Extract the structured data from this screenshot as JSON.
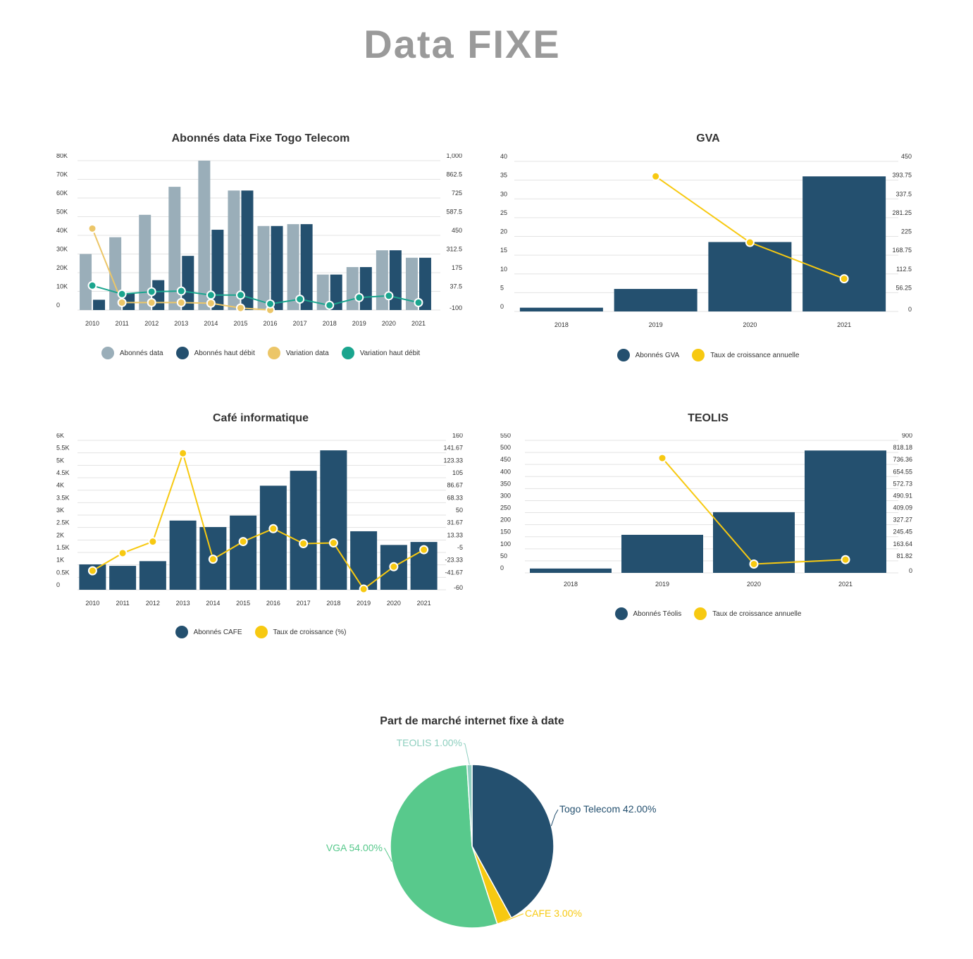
{
  "page": {
    "title": "Data FIXE"
  },
  "colors": {
    "navy": "#24506f",
    "grey_blue": "#9aaeb9",
    "sand": "#ecc668",
    "teal": "#1aa58e",
    "yellow": "#f7c911",
    "green": "#58c98c",
    "light_teal": "#8ecfbf",
    "grid": "#e3e3e3"
  },
  "chart_data": [
    {
      "id": "togo",
      "type": "bar",
      "title": "Abonnés data Fixe Togo Telecom",
      "categories": [
        "2010",
        "2011",
        "2012",
        "2013",
        "2014",
        "2015",
        "2016",
        "2017",
        "2018",
        "2019",
        "2020",
        "2021"
      ],
      "y_ticks_left": [
        "80K",
        "70K",
        "60K",
        "50K",
        "40K",
        "30K",
        "20K",
        "10K",
        "0"
      ],
      "y_ticks_right": [
        "1,000",
        "862.5",
        "725",
        "587.5",
        "450",
        "312.5",
        "175",
        "37.5",
        "-100"
      ],
      "ylim_left": [
        0,
        80000
      ],
      "ylim_right": [
        -100,
        1000
      ],
      "grid": true,
      "legend_position": "bottom",
      "series": [
        {
          "name": "Abonnés data",
          "kind": "bar",
          "axis": "left",
          "color": "#9aaeb9",
          "values": [
            30000,
            39000,
            51000,
            66000,
            80000,
            64000,
            45000,
            46000,
            19000,
            23000,
            32000,
            28000
          ]
        },
        {
          "name": "Abonnés haut débit",
          "kind": "bar",
          "axis": "left",
          "color": "#24506f",
          "values": [
            5500,
            9000,
            16000,
            29000,
            43000,
            64000,
            45000,
            46000,
            19000,
            23000,
            32000,
            28000
          ]
        },
        {
          "name": "Variation data",
          "kind": "line",
          "axis": "right",
          "color": "#ecc668",
          "values": [
            500,
            -45,
            -45,
            -45,
            -50,
            -85,
            -100,
            null,
            null,
            null,
            null,
            null
          ]
        },
        {
          "name": "Variation haut débit",
          "kind": "line",
          "axis": "right",
          "color": "#1aa58e",
          "values": [
            80,
            18,
            35,
            40,
            10,
            10,
            -55,
            -20,
            -65,
            -8,
            5,
            -45
          ]
        }
      ]
    },
    {
      "id": "gva",
      "type": "bar",
      "title": "GVA",
      "categories": [
        "2018",
        "2019",
        "2020",
        "2021"
      ],
      "y_ticks_left": [
        "40",
        "35",
        "30",
        "25",
        "20",
        "15",
        "10",
        "5",
        "0"
      ],
      "y_ticks_right": [
        "450",
        "393.75",
        "337.5",
        "281.25",
        "225",
        "168.75",
        "112.5",
        "56.25",
        "0"
      ],
      "ylim_left": [
        0,
        40
      ],
      "ylim_right": [
        0,
        450
      ],
      "grid": true,
      "legend_position": "bottom",
      "series": [
        {
          "name": "Abonnés GVA",
          "kind": "bar",
          "axis": "left",
          "color": "#24506f",
          "values": [
            1,
            6,
            18.5,
            36
          ]
        },
        {
          "name": "Taux de croissance annuelle",
          "kind": "line",
          "axis": "right",
          "color": "#f7c911",
          "values": [
            null,
            405,
            207,
            98
          ]
        }
      ]
    },
    {
      "id": "cafe",
      "type": "bar",
      "title": "Café informatique",
      "categories": [
        "2010",
        "2011",
        "2012",
        "2013",
        "2014",
        "2015",
        "2016",
        "2017",
        "2018",
        "2019",
        "2020",
        "2021"
      ],
      "y_ticks_left": [
        "6K",
        "5.5K",
        "5K",
        "4.5K",
        "4K",
        "3.5K",
        "3K",
        "2.5K",
        "2K",
        "1.5K",
        "1K",
        "0.5K",
        "0"
      ],
      "y_ticks_right": [
        "160",
        "141.67",
        "123.33",
        "105",
        "86.67",
        "68.33",
        "50",
        "31.67",
        "13.33",
        "-5",
        "-23.33",
        "-41.67",
        "-60"
      ],
      "ylim_left": [
        0,
        6000
      ],
      "ylim_right": [
        -60,
        160
      ],
      "grid": true,
      "legend_position": "bottom",
      "series": [
        {
          "name": "Abonnés CAFE",
          "kind": "bar",
          "axis": "left",
          "color": "#24506f",
          "values": [
            1020,
            960,
            1150,
            2780,
            2520,
            2980,
            4180,
            4780,
            5600,
            2350,
            1800,
            1920
          ]
        },
        {
          "name": "Taux de croissance (%)",
          "kind": "line",
          "axis": "right",
          "color": "#f7c911",
          "values": [
            -32,
            -6,
            11,
            141,
            -15,
            11,
            30,
            8,
            9,
            -59,
            -26,
            -1
          ]
        }
      ]
    },
    {
      "id": "teolis",
      "type": "bar",
      "title": "TEOLIS",
      "categories": [
        "2018",
        "2019",
        "2020",
        "2021"
      ],
      "y_ticks_left": [
        "550",
        "500",
        "450",
        "400",
        "350",
        "300",
        "250",
        "200",
        "150",
        "100",
        "50",
        "0"
      ],
      "y_ticks_right": [
        "900",
        "818.18",
        "736.36",
        "654.55",
        "572.73",
        "490.91",
        "409.09",
        "327.27",
        "245.45",
        "163.64",
        "81.82",
        "0"
      ],
      "ylim_left": [
        0,
        550
      ],
      "ylim_right": [
        0,
        900
      ],
      "grid": true,
      "legend_position": "bottom",
      "series": [
        {
          "name": "Abonnés Téolis",
          "kind": "bar",
          "axis": "left",
          "color": "#24506f",
          "values": [
            18,
            158,
            252,
            508
          ]
        },
        {
          "name": "Taux de croissance annuelle",
          "kind": "line",
          "axis": "right",
          "color": "#f7c911",
          "values": [
            null,
            780,
            60,
            90
          ]
        }
      ]
    },
    {
      "id": "pie",
      "type": "pie",
      "title": "Part de marché internet fixe à date",
      "slices": [
        {
          "label": "Togo Telecom 42.00%",
          "value": 42,
          "color": "#24506f"
        },
        {
          "label": "CAFE 3.00%",
          "value": 3,
          "color": "#f7c911"
        },
        {
          "label": "VGA 54.00%",
          "value": 54,
          "color": "#58c98c"
        },
        {
          "label": "TEOLIS 1.00%",
          "value": 1,
          "color": "#8ecfbf"
        }
      ]
    }
  ]
}
